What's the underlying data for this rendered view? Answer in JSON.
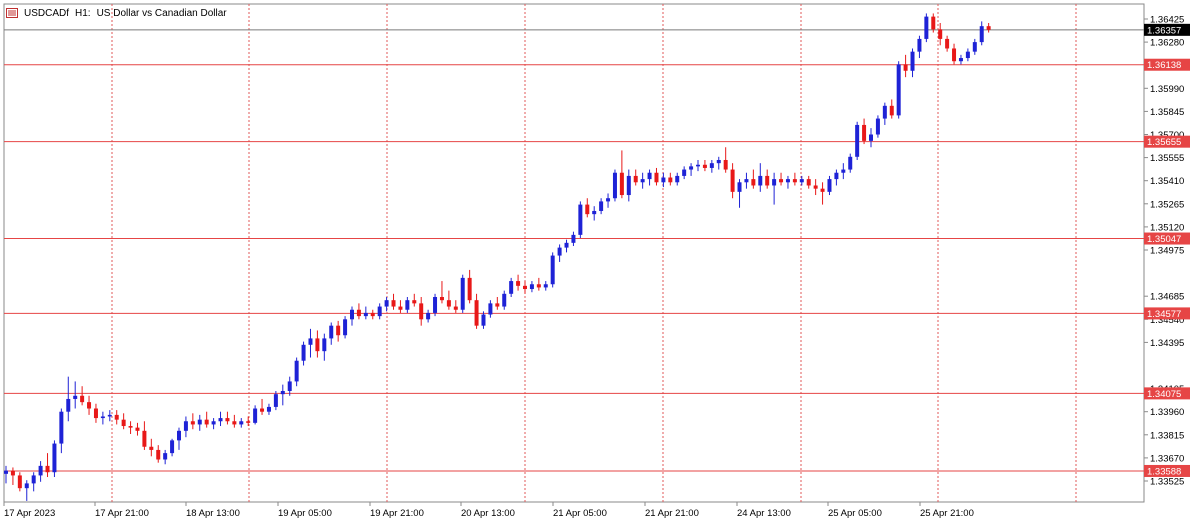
{
  "header": {
    "symbol": "USDCADf",
    "timeframe": "H1:",
    "description": "US Dollar vs Canadian Dollar"
  },
  "colors": {
    "bull": "#1e22d6",
    "bear": "#e81818",
    "level_line": "#e64545",
    "grid_vertical": "#e05a5a",
    "current_line": "#7a7a7a",
    "current_tag": "#000000",
    "axis": "#8a8a8a"
  },
  "chart_data": {
    "type": "candlestick",
    "title": "",
    "xlabel": "",
    "ylabel": "",
    "ylim": [
      1.3345,
      1.3648
    ],
    "y_ticks": [
      "1.36425",
      "1.36280",
      "1.35990",
      "1.35845",
      "1.35700",
      "1.35555",
      "1.35410",
      "1.35265",
      "1.35120",
      "1.34975",
      "1.34685",
      "1.34540",
      "1.34395",
      "1.34105",
      "1.33960",
      "1.33815",
      "1.33670",
      "1.33525"
    ],
    "x_ticks": [
      "17 Apr 2023",
      "17 Apr 21:00",
      "18 Apr 13:00",
      "19 Apr 05:00",
      "19 Apr 21:00",
      "20 Apr 13:00",
      "21 Apr 05:00",
      "21 Apr 21:00",
      "24 Apr 13:00",
      "25 Apr 05:00",
      "25 Apr 21:00"
    ],
    "horizontal_levels": [
      "1.36138",
      "1.35655",
      "1.35047",
      "1.34577",
      "1.34075",
      "1.33588"
    ],
    "current_price": "1.36357",
    "candles": [
      {
        "o": 1.3357,
        "h": 1.3362,
        "l": 1.3351,
        "c": 1.3359
      },
      {
        "o": 1.3359,
        "h": 1.3361,
        "l": 1.335,
        "c": 1.3356
      },
      {
        "o": 1.3356,
        "h": 1.3358,
        "l": 1.3346,
        "c": 1.3348
      },
      {
        "o": 1.3348,
        "h": 1.3353,
        "l": 1.334,
        "c": 1.3351
      },
      {
        "o": 1.3351,
        "h": 1.3358,
        "l": 1.3346,
        "c": 1.3356
      },
      {
        "o": 1.3356,
        "h": 1.3365,
        "l": 1.3352,
        "c": 1.3362
      },
      {
        "o": 1.3362,
        "h": 1.337,
        "l": 1.3355,
        "c": 1.3358
      },
      {
        "o": 1.3358,
        "h": 1.3378,
        "l": 1.3355,
        "c": 1.3376
      },
      {
        "o": 1.3376,
        "h": 1.3398,
        "l": 1.337,
        "c": 1.3396
      },
      {
        "o": 1.3396,
        "h": 1.3418,
        "l": 1.339,
        "c": 1.3404
      },
      {
        "o": 1.3404,
        "h": 1.3415,
        "l": 1.3398,
        "c": 1.3406
      },
      {
        "o": 1.3406,
        "h": 1.3412,
        "l": 1.34,
        "c": 1.3402
      },
      {
        "o": 1.3402,
        "h": 1.3406,
        "l": 1.3394,
        "c": 1.3398
      },
      {
        "o": 1.3398,
        "h": 1.3401,
        "l": 1.3389,
        "c": 1.3392
      },
      {
        "o": 1.3392,
        "h": 1.3396,
        "l": 1.3388,
        "c": 1.3393
      },
      {
        "o": 1.3393,
        "h": 1.3397,
        "l": 1.339,
        "c": 1.3394
      },
      {
        "o": 1.3394,
        "h": 1.3397,
        "l": 1.3388,
        "c": 1.3391
      },
      {
        "o": 1.3391,
        "h": 1.3395,
        "l": 1.3385,
        "c": 1.3387
      },
      {
        "o": 1.3387,
        "h": 1.339,
        "l": 1.3382,
        "c": 1.3386
      },
      {
        "o": 1.3386,
        "h": 1.3389,
        "l": 1.3381,
        "c": 1.3384
      },
      {
        "o": 1.3384,
        "h": 1.339,
        "l": 1.3372,
        "c": 1.3374
      },
      {
        "o": 1.3374,
        "h": 1.3379,
        "l": 1.3368,
        "c": 1.3372
      },
      {
        "o": 1.3372,
        "h": 1.3375,
        "l": 1.3364,
        "c": 1.3366
      },
      {
        "o": 1.3366,
        "h": 1.3372,
        "l": 1.3363,
        "c": 1.337
      },
      {
        "o": 1.337,
        "h": 1.3379,
        "l": 1.3368,
        "c": 1.3378
      },
      {
        "o": 1.3378,
        "h": 1.3386,
        "l": 1.3372,
        "c": 1.3384
      },
      {
        "o": 1.3384,
        "h": 1.3393,
        "l": 1.338,
        "c": 1.339
      },
      {
        "o": 1.339,
        "h": 1.3395,
        "l": 1.3385,
        "c": 1.3388
      },
      {
        "o": 1.3388,
        "h": 1.3394,
        "l": 1.3384,
        "c": 1.3391
      },
      {
        "o": 1.3391,
        "h": 1.3396,
        "l": 1.3386,
        "c": 1.3388
      },
      {
        "o": 1.3388,
        "h": 1.3392,
        "l": 1.3385,
        "c": 1.339
      },
      {
        "o": 1.339,
        "h": 1.3396,
        "l": 1.3387,
        "c": 1.3392
      },
      {
        "o": 1.3392,
        "h": 1.3396,
        "l": 1.3388,
        "c": 1.339
      },
      {
        "o": 1.339,
        "h": 1.3394,
        "l": 1.3386,
        "c": 1.3388
      },
      {
        "o": 1.3388,
        "h": 1.3392,
        "l": 1.3386,
        "c": 1.339
      },
      {
        "o": 1.339,
        "h": 1.3393,
        "l": 1.3387,
        "c": 1.3389
      },
      {
        "o": 1.3389,
        "h": 1.34,
        "l": 1.3388,
        "c": 1.3398
      },
      {
        "o": 1.3398,
        "h": 1.3404,
        "l": 1.3394,
        "c": 1.3396
      },
      {
        "o": 1.3396,
        "h": 1.3401,
        "l": 1.3394,
        "c": 1.3399
      },
      {
        "o": 1.3399,
        "h": 1.3409,
        "l": 1.3397,
        "c": 1.3407
      },
      {
        "o": 1.3407,
        "h": 1.3413,
        "l": 1.34,
        "c": 1.3409
      },
      {
        "o": 1.3409,
        "h": 1.3418,
        "l": 1.3406,
        "c": 1.3415
      },
      {
        "o": 1.3415,
        "h": 1.343,
        "l": 1.3412,
        "c": 1.3428
      },
      {
        "o": 1.3428,
        "h": 1.344,
        "l": 1.3425,
        "c": 1.3438
      },
      {
        "o": 1.3438,
        "h": 1.3448,
        "l": 1.343,
        "c": 1.3442
      },
      {
        "o": 1.3442,
        "h": 1.3447,
        "l": 1.343,
        "c": 1.3434
      },
      {
        "o": 1.3434,
        "h": 1.3445,
        "l": 1.3428,
        "c": 1.3442
      },
      {
        "o": 1.3442,
        "h": 1.3452,
        "l": 1.3438,
        "c": 1.345
      },
      {
        "o": 1.345,
        "h": 1.3453,
        "l": 1.344,
        "c": 1.3444
      },
      {
        "o": 1.3444,
        "h": 1.3456,
        "l": 1.3442,
        "c": 1.3454
      },
      {
        "o": 1.3454,
        "h": 1.3462,
        "l": 1.345,
        "c": 1.346
      },
      {
        "o": 1.346,
        "h": 1.3464,
        "l": 1.3454,
        "c": 1.3456
      },
      {
        "o": 1.3456,
        "h": 1.3462,
        "l": 1.3454,
        "c": 1.3458
      },
      {
        "o": 1.3458,
        "h": 1.346,
        "l": 1.3454,
        "c": 1.3456
      },
      {
        "o": 1.3456,
        "h": 1.3464,
        "l": 1.3454,
        "c": 1.3462
      },
      {
        "o": 1.3462,
        "h": 1.3468,
        "l": 1.3459,
        "c": 1.3466
      },
      {
        "o": 1.3466,
        "h": 1.347,
        "l": 1.346,
        "c": 1.3462
      },
      {
        "o": 1.3462,
        "h": 1.3466,
        "l": 1.3458,
        "c": 1.346
      },
      {
        "o": 1.346,
        "h": 1.3468,
        "l": 1.3458,
        "c": 1.3466
      },
      {
        "o": 1.3466,
        "h": 1.347,
        "l": 1.3462,
        "c": 1.3464
      },
      {
        "o": 1.3464,
        "h": 1.3468,
        "l": 1.345,
        "c": 1.3454
      },
      {
        "o": 1.3454,
        "h": 1.346,
        "l": 1.3452,
        "c": 1.3458
      },
      {
        "o": 1.3458,
        "h": 1.347,
        "l": 1.3456,
        "c": 1.3468
      },
      {
        "o": 1.3468,
        "h": 1.3478,
        "l": 1.3464,
        "c": 1.3466
      },
      {
        "o": 1.3466,
        "h": 1.3472,
        "l": 1.346,
        "c": 1.3462
      },
      {
        "o": 1.3462,
        "h": 1.3466,
        "l": 1.3458,
        "c": 1.346
      },
      {
        "o": 1.346,
        "h": 1.3482,
        "l": 1.3458,
        "c": 1.348
      },
      {
        "o": 1.348,
        "h": 1.3485,
        "l": 1.3464,
        "c": 1.3466
      },
      {
        "o": 1.3466,
        "h": 1.347,
        "l": 1.3448,
        "c": 1.345
      },
      {
        "o": 1.345,
        "h": 1.3459,
        "l": 1.3448,
        "c": 1.3457
      },
      {
        "o": 1.3457,
        "h": 1.3466,
        "l": 1.3455,
        "c": 1.3464
      },
      {
        "o": 1.3464,
        "h": 1.3468,
        "l": 1.346,
        "c": 1.3462
      },
      {
        "o": 1.3462,
        "h": 1.3472,
        "l": 1.346,
        "c": 1.347
      },
      {
        "o": 1.347,
        "h": 1.348,
        "l": 1.3468,
        "c": 1.3478
      },
      {
        "o": 1.3478,
        "h": 1.3482,
        "l": 1.3472,
        "c": 1.3475
      },
      {
        "o": 1.3475,
        "h": 1.3478,
        "l": 1.347,
        "c": 1.3473
      },
      {
        "o": 1.3473,
        "h": 1.3478,
        "l": 1.3471,
        "c": 1.3476
      },
      {
        "o": 1.3476,
        "h": 1.348,
        "l": 1.3472,
        "c": 1.3474
      },
      {
        "o": 1.3474,
        "h": 1.3478,
        "l": 1.3472,
        "c": 1.3476
      },
      {
        "o": 1.3476,
        "h": 1.3496,
        "l": 1.3474,
        "c": 1.3494
      },
      {
        "o": 1.3494,
        "h": 1.3501,
        "l": 1.349,
        "c": 1.3499
      },
      {
        "o": 1.3499,
        "h": 1.3504,
        "l": 1.3496,
        "c": 1.3502
      },
      {
        "o": 1.3502,
        "h": 1.3509,
        "l": 1.35,
        "c": 1.3507
      },
      {
        "o": 1.3507,
        "h": 1.3528,
        "l": 1.3505,
        "c": 1.3526
      },
      {
        "o": 1.3526,
        "h": 1.353,
        "l": 1.3518,
        "c": 1.352
      },
      {
        "o": 1.352,
        "h": 1.3525,
        "l": 1.3516,
        "c": 1.3522
      },
      {
        "o": 1.3522,
        "h": 1.353,
        "l": 1.352,
        "c": 1.3528
      },
      {
        "o": 1.3528,
        "h": 1.3533,
        "l": 1.3524,
        "c": 1.353
      },
      {
        "o": 1.353,
        "h": 1.3548,
        "l": 1.3528,
        "c": 1.3546
      },
      {
        "o": 1.3546,
        "h": 1.356,
        "l": 1.353,
        "c": 1.3532
      },
      {
        "o": 1.3532,
        "h": 1.3548,
        "l": 1.3528,
        "c": 1.3544
      },
      {
        "o": 1.3544,
        "h": 1.3548,
        "l": 1.3538,
        "c": 1.354
      },
      {
        "o": 1.354,
        "h": 1.3546,
        "l": 1.3536,
        "c": 1.3542
      },
      {
        "o": 1.3542,
        "h": 1.3548,
        "l": 1.3538,
        "c": 1.3546
      },
      {
        "o": 1.3546,
        "h": 1.3549,
        "l": 1.3538,
        "c": 1.354
      },
      {
        "o": 1.354,
        "h": 1.3546,
        "l": 1.3537,
        "c": 1.3543
      },
      {
        "o": 1.3543,
        "h": 1.3546,
        "l": 1.3538,
        "c": 1.354
      },
      {
        "o": 1.354,
        "h": 1.3546,
        "l": 1.3538,
        "c": 1.3544
      },
      {
        "o": 1.3544,
        "h": 1.355,
        "l": 1.3542,
        "c": 1.3548
      },
      {
        "o": 1.3548,
        "h": 1.3552,
        "l": 1.3544,
        "c": 1.355
      },
      {
        "o": 1.355,
        "h": 1.3554,
        "l": 1.3547,
        "c": 1.3551
      },
      {
        "o": 1.3551,
        "h": 1.3554,
        "l": 1.3547,
        "c": 1.3549
      },
      {
        "o": 1.3549,
        "h": 1.3554,
        "l": 1.3546,
        "c": 1.3552
      },
      {
        "o": 1.3552,
        "h": 1.3556,
        "l": 1.3548,
        "c": 1.3554
      },
      {
        "o": 1.3554,
        "h": 1.3562,
        "l": 1.3546,
        "c": 1.3548
      },
      {
        "o": 1.3548,
        "h": 1.3552,
        "l": 1.353,
        "c": 1.3534
      },
      {
        "o": 1.3534,
        "h": 1.3542,
        "l": 1.3524,
        "c": 1.354
      },
      {
        "o": 1.354,
        "h": 1.3546,
        "l": 1.3536,
        "c": 1.3542
      },
      {
        "o": 1.3542,
        "h": 1.3548,
        "l": 1.3536,
        "c": 1.3538
      },
      {
        "o": 1.3538,
        "h": 1.3552,
        "l": 1.3534,
        "c": 1.3544
      },
      {
        "o": 1.3544,
        "h": 1.3548,
        "l": 1.3536,
        "c": 1.3538
      },
      {
        "o": 1.3538,
        "h": 1.3546,
        "l": 1.3526,
        "c": 1.3542
      },
      {
        "o": 1.3542,
        "h": 1.3546,
        "l": 1.3538,
        "c": 1.354
      },
      {
        "o": 1.354,
        "h": 1.3544,
        "l": 1.3536,
        "c": 1.3542
      },
      {
        "o": 1.3542,
        "h": 1.3546,
        "l": 1.3538,
        "c": 1.354
      },
      {
        "o": 1.354,
        "h": 1.3544,
        "l": 1.3538,
        "c": 1.3542
      },
      {
        "o": 1.3542,
        "h": 1.3544,
        "l": 1.3536,
        "c": 1.3538
      },
      {
        "o": 1.3538,
        "h": 1.3542,
        "l": 1.3532,
        "c": 1.3536
      },
      {
        "o": 1.3536,
        "h": 1.354,
        "l": 1.3526,
        "c": 1.3534
      },
      {
        "o": 1.3534,
        "h": 1.3544,
        "l": 1.3532,
        "c": 1.3542
      },
      {
        "o": 1.3542,
        "h": 1.3548,
        "l": 1.3538,
        "c": 1.3546
      },
      {
        "o": 1.3546,
        "h": 1.3552,
        "l": 1.3542,
        "c": 1.3548
      },
      {
        "o": 1.3548,
        "h": 1.3558,
        "l": 1.3546,
        "c": 1.3556
      },
      {
        "o": 1.3556,
        "h": 1.3578,
        "l": 1.3554,
        "c": 1.3576
      },
      {
        "o": 1.3576,
        "h": 1.358,
        "l": 1.3564,
        "c": 1.3566
      },
      {
        "o": 1.3566,
        "h": 1.3574,
        "l": 1.3562,
        "c": 1.357
      },
      {
        "o": 1.357,
        "h": 1.3582,
        "l": 1.3568,
        "c": 1.358
      },
      {
        "o": 1.358,
        "h": 1.359,
        "l": 1.3576,
        "c": 1.3588
      },
      {
        "o": 1.3588,
        "h": 1.3592,
        "l": 1.358,
        "c": 1.3582
      },
      {
        "o": 1.3582,
        "h": 1.3616,
        "l": 1.358,
        "c": 1.3614
      },
      {
        "o": 1.3614,
        "h": 1.362,
        "l": 1.3606,
        "c": 1.361
      },
      {
        "o": 1.361,
        "h": 1.3624,
        "l": 1.3606,
        "c": 1.3622
      },
      {
        "o": 1.3622,
        "h": 1.3632,
        "l": 1.3618,
        "c": 1.363
      },
      {
        "o": 1.363,
        "h": 1.3646,
        "l": 1.3628,
        "c": 1.3644
      },
      {
        "o": 1.3644,
        "h": 1.3646,
        "l": 1.3634,
        "c": 1.3636
      },
      {
        "o": 1.3636,
        "h": 1.364,
        "l": 1.3626,
        "c": 1.363
      },
      {
        "o": 1.363,
        "h": 1.3632,
        "l": 1.3622,
        "c": 1.3624
      },
      {
        "o": 1.3624,
        "h": 1.3627,
        "l": 1.3614,
        "c": 1.3616
      },
      {
        "o": 1.3616,
        "h": 1.362,
        "l": 1.3614,
        "c": 1.3618
      },
      {
        "o": 1.3618,
        "h": 1.3624,
        "l": 1.3616,
        "c": 1.3622
      },
      {
        "o": 1.3622,
        "h": 1.363,
        "l": 1.362,
        "c": 1.3628
      },
      {
        "o": 1.3628,
        "h": 1.3641,
        "l": 1.3626,
        "c": 1.3638
      },
      {
        "o": 1.3638,
        "h": 1.364,
        "l": 1.3634,
        "c": 1.36357
      }
    ]
  }
}
